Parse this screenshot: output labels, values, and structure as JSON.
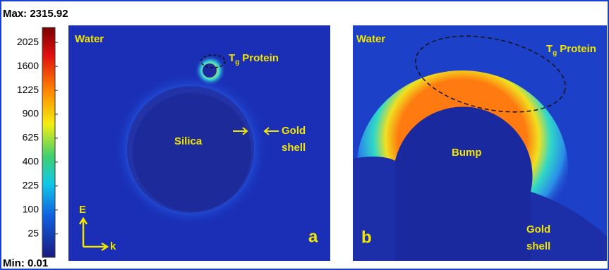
{
  "colorbar": {
    "max_label": "Max: 2315.92",
    "min_label": "Min: 0.01",
    "range": [
      0.01,
      2315.92
    ],
    "scale": "sqrt",
    "ticks": [
      2025,
      1600,
      1225,
      900,
      625,
      400,
      225,
      100,
      25
    ]
  },
  "panel_a": {
    "medium": "Water",
    "protein": {
      "base": "T",
      "sub": "g",
      "text": "Protein"
    },
    "core": "Silica",
    "shell": [
      "Gold",
      "shell"
    ],
    "field": "E",
    "wave": "k",
    "letter": "a"
  },
  "panel_b": {
    "medium": "Water",
    "protein": {
      "base": "T",
      "sub": "g",
      "text": "Protein"
    },
    "bump": "Bump",
    "shell": [
      "Gold",
      "shell"
    ],
    "letter": "b"
  }
}
